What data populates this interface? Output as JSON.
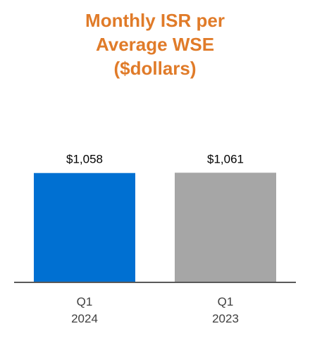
{
  "chart_data": {
    "type": "bar",
    "title_lines": [
      "Monthly ISR per",
      "Average WSE",
      "($dollars)"
    ],
    "categories": [
      {
        "line1": "Q1",
        "line2": "2024"
      },
      {
        "line1": "Q1",
        "line2": "2023"
      }
    ],
    "values": [
      1058,
      1061
    ],
    "value_labels": [
      "$1,058",
      "$1,061"
    ],
    "colors": [
      "#0070D2",
      "#A6A6A6"
    ],
    "axis_color": "#595959",
    "ylim": [
      0,
      1200
    ],
    "grid": false,
    "legend": "none"
  }
}
